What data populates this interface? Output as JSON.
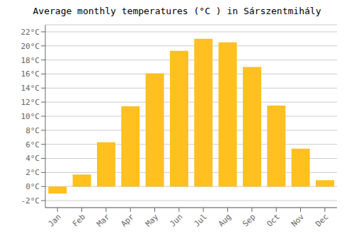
{
  "chart_data": {
    "type": "bar",
    "title": "Average monthly temperatures (°C ) in Sárszentmihály",
    "categories": [
      "Jan",
      "Feb",
      "Mar",
      "Apr",
      "May",
      "Jun",
      "Jul",
      "Aug",
      "Sep",
      "Oct",
      "Nov",
      "Dec"
    ],
    "values": [
      -1.0,
      1.7,
      6.3,
      11.4,
      16.1,
      19.3,
      21.0,
      20.5,
      17.0,
      11.5,
      5.4,
      0.9
    ],
    "color": "#FFC020",
    "ylim": [
      -3,
      23
    ],
    "yticks": [
      {
        "value": -2,
        "label": "-2°C"
      },
      {
        "value": 0,
        "label": "0°C"
      },
      {
        "value": 2,
        "label": "2°C"
      },
      {
        "value": 4,
        "label": "4°C"
      },
      {
        "value": 6,
        "label": "6°C"
      },
      {
        "value": 8,
        "label": "8°C"
      },
      {
        "value": 10,
        "label": "10°C"
      },
      {
        "value": 12,
        "label": "12°C"
      },
      {
        "value": 14,
        "label": "14°C"
      },
      {
        "value": 16,
        "label": "16°C"
      },
      {
        "value": 18,
        "label": "18°C"
      },
      {
        "value": 20,
        "label": "20°C"
      },
      {
        "value": 22,
        "label": "22°C"
      }
    ],
    "grid": true
  }
}
